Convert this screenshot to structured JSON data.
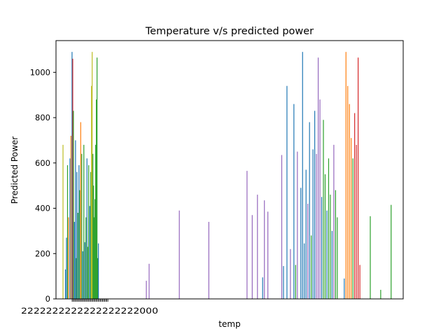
{
  "chart_data": {
    "type": "bar",
    "title": "Temperature v/s predicted power",
    "xlabel": "temp",
    "ylabel": "Predicted Power",
    "ylim": [
      0,
      1140
    ],
    "yticks": [
      0,
      200,
      400,
      600,
      800,
      1000
    ],
    "ytick_labels": [
      "0",
      "200",
      "400",
      "600",
      "800",
      "1000"
    ],
    "grid": false,
    "legend": "none",
    "colors": [
      "#1f77b4",
      "#ff7f0e",
      "#2ca02c",
      "#d62728",
      "#9467bd",
      "#8c564b",
      "#e377c2",
      "#7f7f7f",
      "#bcbd22",
      "#17becf"
    ],
    "x_tick_label_text": "2222222222222222222000",
    "bars": [
      {
        "x": 0.02,
        "v": 680,
        "c": 8
      },
      {
        "x": 0.027,
        "v": 130,
        "c": 0
      },
      {
        "x": 0.03,
        "v": 270,
        "c": 0
      },
      {
        "x": 0.033,
        "v": 590,
        "c": 2
      },
      {
        "x": 0.036,
        "v": 360,
        "c": 1
      },
      {
        "x": 0.04,
        "v": 620,
        "c": 0
      },
      {
        "x": 0.043,
        "v": 720,
        "c": 1
      },
      {
        "x": 0.046,
        "v": 1090,
        "c": 0
      },
      {
        "x": 0.048,
        "v": 1060,
        "c": 3
      },
      {
        "x": 0.05,
        "v": 830,
        "c": 2
      },
      {
        "x": 0.053,
        "v": 340,
        "c": 0
      },
      {
        "x": 0.056,
        "v": 700,
        "c": 0
      },
      {
        "x": 0.058,
        "v": 180,
        "c": 2
      },
      {
        "x": 0.06,
        "v": 560,
        "c": 0
      },
      {
        "x": 0.063,
        "v": 380,
        "c": 2
      },
      {
        "x": 0.066,
        "v": 590,
        "c": 0
      },
      {
        "x": 0.068,
        "v": 480,
        "c": 2
      },
      {
        "x": 0.071,
        "v": 780,
        "c": 1
      },
      {
        "x": 0.074,
        "v": 640,
        "c": 2
      },
      {
        "x": 0.077,
        "v": 210,
        "c": 0
      },
      {
        "x": 0.08,
        "v": 680,
        "c": 2
      },
      {
        "x": 0.083,
        "v": 250,
        "c": 0
      },
      {
        "x": 0.086,
        "v": 360,
        "c": 2
      },
      {
        "x": 0.089,
        "v": 620,
        "c": 0
      },
      {
        "x": 0.091,
        "v": 230,
        "c": 2
      },
      {
        "x": 0.094,
        "v": 590,
        "c": 2
      },
      {
        "x": 0.097,
        "v": 410,
        "c": 0
      },
      {
        "x": 0.1,
        "v": 560,
        "c": 2
      },
      {
        "x": 0.102,
        "v": 940,
        "c": 8
      },
      {
        "x": 0.104,
        "v": 1090,
        "c": 8
      },
      {
        "x": 0.106,
        "v": 640,
        "c": 2
      },
      {
        "x": 0.108,
        "v": 500,
        "c": 2
      },
      {
        "x": 0.11,
        "v": 360,
        "c": 2
      },
      {
        "x": 0.112,
        "v": 440,
        "c": 2
      },
      {
        "x": 0.114,
        "v": 680,
        "c": 2
      },
      {
        "x": 0.116,
        "v": 880,
        "c": 2
      },
      {
        "x": 0.118,
        "v": 1065,
        "c": 2
      },
      {
        "x": 0.12,
        "v": 180,
        "c": 2
      },
      {
        "x": 0.122,
        "v": 245,
        "c": 0
      },
      {
        "x": 0.26,
        "v": 80,
        "c": 4
      },
      {
        "x": 0.268,
        "v": 155,
        "c": 4
      },
      {
        "x": 0.355,
        "v": 390,
        "c": 4
      },
      {
        "x": 0.44,
        "v": 340,
        "c": 4
      },
      {
        "x": 0.55,
        "v": 565,
        "c": 4
      },
      {
        "x": 0.565,
        "v": 370,
        "c": 4
      },
      {
        "x": 0.58,
        "v": 460,
        "c": 4
      },
      {
        "x": 0.595,
        "v": 95,
        "c": 0
      },
      {
        "x": 0.6,
        "v": 435,
        "c": 4
      },
      {
        "x": 0.61,
        "v": 385,
        "c": 4
      },
      {
        "x": 0.65,
        "v": 635,
        "c": 4
      },
      {
        "x": 0.655,
        "v": 145,
        "c": 0
      },
      {
        "x": 0.665,
        "v": 940,
        "c": 0
      },
      {
        "x": 0.675,
        "v": 220,
        "c": 4
      },
      {
        "x": 0.685,
        "v": 860,
        "c": 0
      },
      {
        "x": 0.69,
        "v": 150,
        "c": 2
      },
      {
        "x": 0.695,
        "v": 650,
        "c": 4
      },
      {
        "x": 0.705,
        "v": 490,
        "c": 0
      },
      {
        "x": 0.71,
        "v": 1090,
        "c": 0
      },
      {
        "x": 0.715,
        "v": 245,
        "c": 0
      },
      {
        "x": 0.72,
        "v": 570,
        "c": 0
      },
      {
        "x": 0.725,
        "v": 420,
        "c": 4
      },
      {
        "x": 0.73,
        "v": 780,
        "c": 0
      },
      {
        "x": 0.735,
        "v": 280,
        "c": 2
      },
      {
        "x": 0.74,
        "v": 660,
        "c": 0
      },
      {
        "x": 0.745,
        "v": 830,
        "c": 0
      },
      {
        "x": 0.75,
        "v": 640,
        "c": 4
      },
      {
        "x": 0.755,
        "v": 1065,
        "c": 4
      },
      {
        "x": 0.76,
        "v": 880,
        "c": 4
      },
      {
        "x": 0.765,
        "v": 450,
        "c": 0
      },
      {
        "x": 0.77,
        "v": 790,
        "c": 2
      },
      {
        "x": 0.775,
        "v": 550,
        "c": 2
      },
      {
        "x": 0.78,
        "v": 390,
        "c": 0
      },
      {
        "x": 0.785,
        "v": 620,
        "c": 2
      },
      {
        "x": 0.79,
        "v": 460,
        "c": 2
      },
      {
        "x": 0.795,
        "v": 300,
        "c": 0
      },
      {
        "x": 0.8,
        "v": 680,
        "c": 4
      },
      {
        "x": 0.805,
        "v": 480,
        "c": 2
      },
      {
        "x": 0.81,
        "v": 360,
        "c": 2
      },
      {
        "x": 0.83,
        "v": 90,
        "c": 0
      },
      {
        "x": 0.835,
        "v": 1090,
        "c": 1
      },
      {
        "x": 0.84,
        "v": 940,
        "c": 1
      },
      {
        "x": 0.845,
        "v": 860,
        "c": 1
      },
      {
        "x": 0.85,
        "v": 710,
        "c": 1
      },
      {
        "x": 0.855,
        "v": 620,
        "c": 2
      },
      {
        "x": 0.86,
        "v": 820,
        "c": 3
      },
      {
        "x": 0.865,
        "v": 680,
        "c": 3
      },
      {
        "x": 0.87,
        "v": 1065,
        "c": 3
      },
      {
        "x": 0.875,
        "v": 150,
        "c": 3
      },
      {
        "x": 0.905,
        "v": 365,
        "c": 2
      },
      {
        "x": 0.935,
        "v": 40,
        "c": 2
      },
      {
        "x": 0.965,
        "v": 415,
        "c": 2
      }
    ]
  }
}
